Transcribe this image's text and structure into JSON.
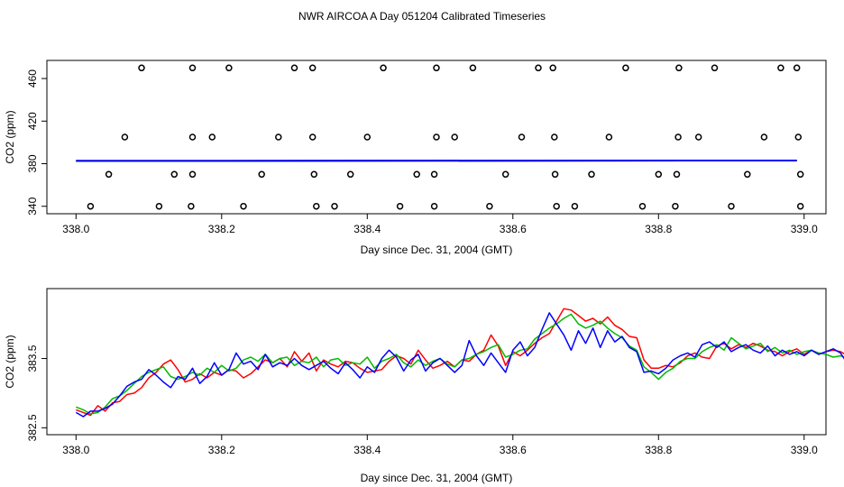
{
  "title": "NWR AIRCOA A  Day 051204  Calibrated Timeseries",
  "chart_data": [
    {
      "type": "scatter",
      "xlabel": "Day since Dec. 31, 2004 (GMT)",
      "ylabel": "CO2 (ppm)",
      "xlim": [
        337.96,
        339.03
      ],
      "ylim": [
        333,
        477
      ],
      "xticks": [
        "338.0",
        "338.2",
        "338.4",
        "338.6",
        "338.8",
        "339.0"
      ],
      "xtick_values": [
        338.0,
        338.2,
        338.4,
        338.6,
        338.8,
        339.0
      ],
      "yticks": [
        "340",
        "380",
        "420",
        "460"
      ],
      "ytick_values": [
        340,
        380,
        420,
        460
      ],
      "points": [
        [
          338.02,
          340
        ],
        [
          338.045,
          370
        ],
        [
          338.067,
          405
        ],
        [
          338.09,
          470
        ],
        [
          338.114,
          340
        ],
        [
          338.135,
          370
        ],
        [
          338.158,
          340
        ],
        [
          338.16,
          370
        ],
        [
          338.16,
          405
        ],
        [
          338.16,
          470
        ],
        [
          338.187,
          405
        ],
        [
          338.21,
          470
        ],
        [
          338.23,
          340
        ],
        [
          338.255,
          370
        ],
        [
          338.278,
          405
        ],
        [
          338.3,
          470
        ],
        [
          338.325,
          470
        ],
        [
          338.325,
          405
        ],
        [
          338.327,
          370
        ],
        [
          338.33,
          340
        ],
        [
          338.355,
          340
        ],
        [
          338.377,
          370
        ],
        [
          338.4,
          405
        ],
        [
          338.422,
          470
        ],
        [
          338.445,
          340
        ],
        [
          338.468,
          370
        ],
        [
          338.492,
          340
        ],
        [
          338.492,
          370
        ],
        [
          338.495,
          405
        ],
        [
          338.495,
          470
        ],
        [
          338.52,
          405
        ],
        [
          338.545,
          470
        ],
        [
          338.568,
          340
        ],
        [
          338.59,
          370
        ],
        [
          338.612,
          405
        ],
        [
          338.635,
          470
        ],
        [
          338.655,
          470
        ],
        [
          338.657,
          405
        ],
        [
          338.658,
          370
        ],
        [
          338.66,
          340
        ],
        [
          338.685,
          340
        ],
        [
          338.708,
          370
        ],
        [
          338.732,
          405
        ],
        [
          338.755,
          470
        ],
        [
          338.778,
          340
        ],
        [
          338.8,
          370
        ],
        [
          338.823,
          340
        ],
        [
          338.825,
          370
        ],
        [
          338.827,
          405
        ],
        [
          338.828,
          470
        ],
        [
          338.855,
          405
        ],
        [
          338.877,
          470
        ],
        [
          338.9,
          340
        ],
        [
          338.922,
          370
        ],
        [
          338.945,
          405
        ],
        [
          338.968,
          470
        ],
        [
          338.99,
          470
        ],
        [
          338.992,
          405
        ],
        [
          338.995,
          370
        ],
        [
          338.995,
          340
        ]
      ],
      "series": [
        {
          "color": "#ff0000",
          "x": [
            338.0,
            338.99
          ],
          "values": [
            382.6,
            383.0
          ]
        },
        {
          "color": "#00bb00",
          "x": [
            338.0,
            338.99
          ],
          "values": [
            382.6,
            383.0
          ]
        },
        {
          "color": "#0000ff",
          "x": [
            338.0,
            338.99
          ],
          "values": [
            382.6,
            383.0
          ]
        }
      ]
    },
    {
      "type": "line",
      "xlabel": "Day since Dec. 31, 2004 (GMT)",
      "ylabel": "CO2 (ppm)",
      "xlim": [
        337.96,
        339.03
      ],
      "ylim": [
        382.4,
        384.51
      ],
      "xticks": [
        "338.0",
        "338.2",
        "338.4",
        "338.6",
        "338.8",
        "339.0"
      ],
      "xtick_values": [
        338.0,
        338.2,
        338.4,
        338.6,
        338.8,
        339.0
      ],
      "yticks": [
        "382.5",
        "383.5"
      ],
      "ytick_values": [
        382.5,
        383.5
      ],
      "x_start": 338.0,
      "x_step": 0.01,
      "series": [
        {
          "color": "#ff0000",
          "values": [
            382.76,
            382.72,
            382.68,
            382.82,
            382.74,
            382.86,
            382.88,
            382.98,
            383.0,
            383.08,
            383.22,
            383.3,
            383.42,
            383.48,
            383.34,
            383.16,
            383.2,
            383.28,
            383.22,
            383.3,
            383.26,
            383.34,
            383.32,
            383.22,
            383.28,
            383.38,
            383.48,
            383.44,
            383.5,
            383.38,
            383.6,
            383.46,
            383.58,
            383.32,
            383.48,
            383.42,
            383.38,
            383.46,
            383.44,
            383.36,
            383.3,
            383.32,
            383.34,
            383.46,
            383.54,
            383.5,
            383.42,
            383.62,
            383.48,
            383.36,
            383.4,
            383.46,
            383.38,
            383.48,
            383.46,
            383.56,
            383.62,
            383.84,
            383.68,
            383.4,
            383.6,
            383.54,
            383.62,
            383.72,
            383.8,
            383.86,
            384.04,
            384.22,
            384.2,
            384.12,
            384.04,
            384.08,
            384.0,
            384.1,
            383.98,
            383.92,
            383.82,
            383.8,
            383.48,
            383.36,
            383.36,
            383.4,
            383.38,
            383.44,
            383.54,
            383.58,
            383.52,
            383.5,
            383.68,
            383.72,
            383.64,
            383.7,
            383.66,
            383.72,
            383.68,
            383.62,
            383.6,
            383.54,
            383.6,
            383.64,
            383.56,
            383.62,
            383.56,
            383.6,
            383.62,
            383.6,
            383.54,
            383.3,
            383.16,
            383.2,
            383.36,
            383.4,
            383.42,
            383.46,
            383.48,
            383.66,
            383.6,
            383.58,
            383.46,
            383.44,
            383.58,
            383.6,
            383.7,
            383.82,
            383.84
          ]
        },
        {
          "color": "#00bb00",
          "values": [
            382.8,
            382.76,
            382.7,
            382.72,
            382.8,
            382.92,
            382.96,
            383.04,
            383.14,
            383.24,
            383.3,
            383.34,
            383.38,
            383.24,
            383.2,
            383.24,
            383.3,
            383.26,
            383.36,
            383.3,
            383.4,
            383.32,
            383.36,
            383.48,
            383.52,
            383.46,
            383.56,
            383.44,
            383.5,
            383.52,
            383.4,
            383.46,
            383.44,
            383.52,
            383.38,
            383.48,
            383.5,
            383.4,
            383.44,
            383.42,
            383.52,
            383.36,
            383.46,
            383.5,
            383.56,
            383.44,
            383.38,
            383.48,
            383.4,
            383.46,
            383.5,
            383.42,
            383.38,
            383.48,
            383.5,
            383.56,
            383.6,
            383.66,
            383.7,
            383.52,
            383.56,
            383.62,
            383.64,
            383.78,
            383.86,
            383.94,
            384.0,
            384.08,
            384.14,
            384.0,
            383.94,
            383.98,
            384.04,
            383.94,
            383.86,
            383.8,
            383.68,
            383.62,
            383.38,
            383.3,
            383.2,
            383.3,
            383.36,
            383.46,
            383.5,
            383.5,
            383.6,
            383.66,
            383.7,
            383.62,
            383.8,
            383.72,
            383.64,
            383.68,
            383.72,
            383.6,
            383.66,
            383.58,
            383.62,
            383.56,
            383.6,
            383.62,
            383.58,
            383.56,
            383.52,
            383.54,
            383.5,
            383.36,
            383.3,
            383.34,
            383.38,
            383.42,
            383.46,
            383.58,
            383.54,
            383.62,
            383.6,
            383.5,
            383.44,
            383.48,
            383.6,
            383.62,
            383.68,
            383.74,
            383.8
          ]
        },
        {
          "color": "#0000ff",
          "values": [
            382.72,
            382.66,
            382.74,
            382.74,
            382.78,
            382.84,
            382.96,
            383.1,
            383.16,
            383.2,
            383.34,
            383.26,
            383.16,
            383.08,
            383.24,
            383.2,
            383.36,
            383.14,
            383.24,
            383.44,
            383.26,
            383.34,
            383.58,
            383.42,
            383.46,
            383.34,
            383.56,
            383.38,
            383.44,
            383.4,
            383.5,
            383.4,
            383.34,
            383.4,
            383.46,
            383.36,
            383.28,
            383.44,
            383.34,
            383.22,
            383.38,
            383.3,
            383.5,
            383.62,
            383.52,
            383.32,
            383.48,
            383.56,
            383.32,
            383.44,
            383.5,
            383.4,
            383.3,
            383.4,
            383.76,
            383.54,
            383.4,
            383.58,
            383.44,
            383.3,
            383.62,
            383.74,
            383.54,
            383.66,
            383.92,
            384.16,
            384.0,
            383.84,
            383.62,
            383.9,
            383.72,
            383.94,
            383.66,
            383.9,
            383.74,
            383.82,
            383.66,
            383.6,
            383.3,
            383.32,
            383.28,
            383.36,
            383.48,
            383.54,
            383.58,
            383.52,
            383.7,
            383.74,
            383.66,
            383.74,
            383.6,
            383.66,
            383.7,
            383.62,
            383.58,
            383.68,
            383.54,
            383.62,
            383.56,
            383.6,
            383.54,
            383.62,
            383.56,
            383.6,
            383.64,
            383.58,
            383.42,
            383.24,
            383.14,
            383.22,
            383.4,
            383.44,
            383.52,
            383.56,
            383.62,
            383.56,
            383.48,
            383.44,
            383.28,
            383.1,
            383.46,
            383.52,
            383.56,
            383.66,
            383.74
          ]
        }
      ]
    }
  ]
}
